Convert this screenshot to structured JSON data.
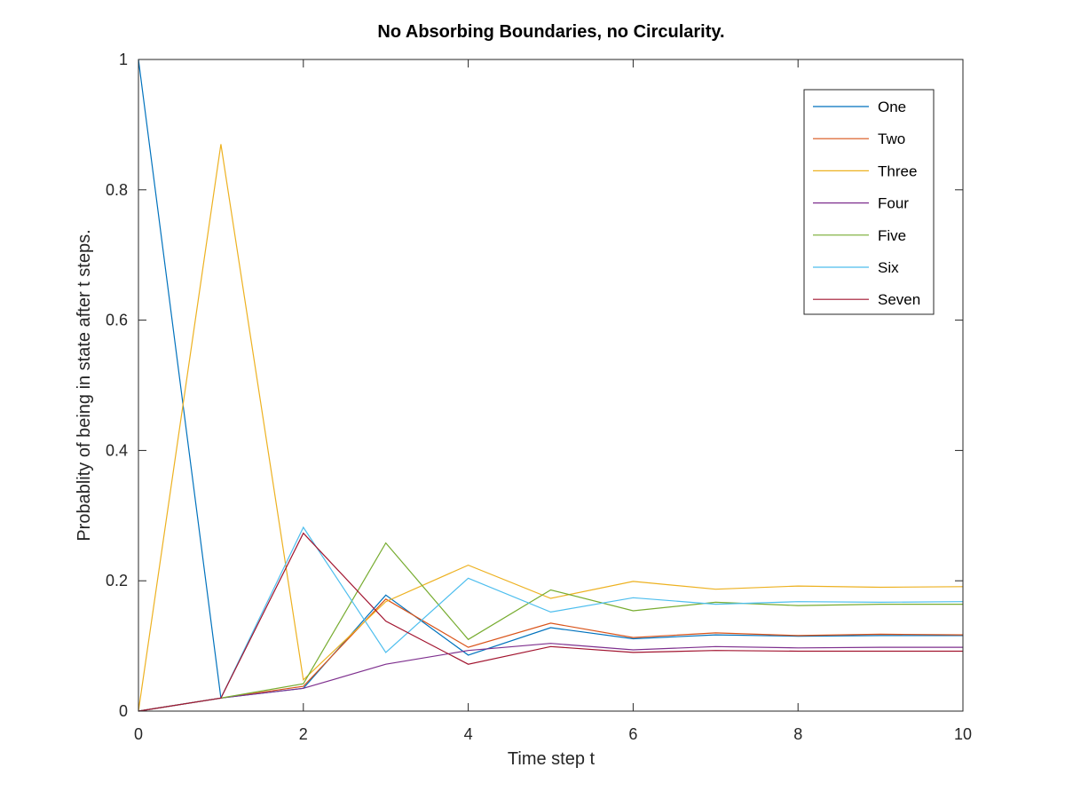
{
  "chart_data": {
    "type": "line",
    "title": "No Absorbing Boundaries, no Circularity.",
    "xlabel": "Time step t",
    "ylabel": "Probablity of being in state after t steps.",
    "xlim": [
      0,
      10
    ],
    "ylim": [
      0,
      1
    ],
    "xticks": [
      "0",
      "2",
      "4",
      "6",
      "8",
      "10"
    ],
    "yticks": [
      "0",
      "0.2",
      "0.4",
      "0.6",
      "0.8",
      "1"
    ],
    "grid": false,
    "legend_position": "top-right",
    "x": [
      0,
      1,
      2,
      3,
      4,
      5,
      6,
      7,
      8,
      9,
      10
    ],
    "series": [
      {
        "name": "One",
        "color": "#0072bd",
        "values": [
          1,
          0.02,
          0.035,
          0.178,
          0.086,
          0.128,
          0.111,
          0.117,
          0.115,
          0.116,
          0.116
        ]
      },
      {
        "name": "Two",
        "color": "#d95319",
        "values": [
          0,
          0.02,
          0.038,
          0.172,
          0.098,
          0.135,
          0.113,
          0.12,
          0.116,
          0.118,
          0.117
        ]
      },
      {
        "name": "Three",
        "color": "#edb120",
        "values": [
          0,
          0.87,
          0.048,
          0.168,
          0.224,
          0.173,
          0.199,
          0.187,
          0.192,
          0.19,
          0.191
        ]
      },
      {
        "name": "Four",
        "color": "#7e2f8e",
        "values": [
          0,
          0.02,
          0.035,
          0.072,
          0.093,
          0.104,
          0.094,
          0.099,
          0.097,
          0.098,
          0.098
        ]
      },
      {
        "name": "Five",
        "color": "#77ac30",
        "values": [
          0,
          0.02,
          0.042,
          0.258,
          0.11,
          0.186,
          0.154,
          0.167,
          0.162,
          0.164,
          0.164
        ]
      },
      {
        "name": "Six",
        "color": "#4dbeee",
        "values": [
          0,
          0.02,
          0.282,
          0.09,
          0.204,
          0.152,
          0.174,
          0.164,
          0.168,
          0.167,
          0.168
        ]
      },
      {
        "name": "Seven",
        "color": "#a2142f",
        "values": [
          0,
          0.02,
          0.273,
          0.138,
          0.072,
          0.099,
          0.09,
          0.093,
          0.092,
          0.092,
          0.092
        ]
      }
    ]
  }
}
